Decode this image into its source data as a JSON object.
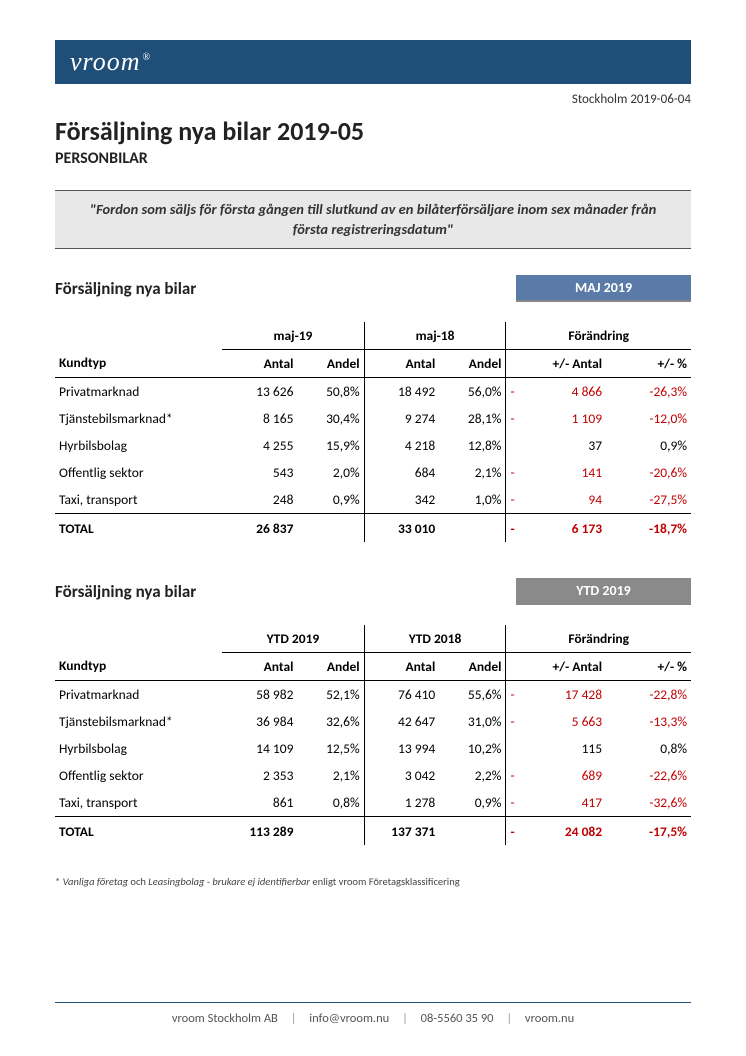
{
  "header": {
    "logo_text": "vroom",
    "logo_mark": "®",
    "date_line": "Stockholm 2019-06-04",
    "title": "Försäljning nya bilar 2019-05",
    "subtitle": "PERSONBILAR"
  },
  "quote": "\"Fordon som säljs för första gången till slutkund av en bilåterförsäljare inom sex månader från första registreringsdatum\"",
  "colors": {
    "header_bar": "#1f4e79",
    "badge_blue": "#5a7ba8",
    "badge_grey": "#8a8a8a",
    "quote_bg": "#e8e8e8",
    "negative": "#c00000"
  },
  "columns": {
    "kundtyp": "Kundtyp",
    "antal": "Antal",
    "andel": "Andel",
    "chg_antal": "+/- Antal",
    "chg_pct": "+/- %",
    "forandring": "Förändring"
  },
  "section_month": {
    "title": "Försäljning nya bilar",
    "badge": "MAJ 2019",
    "period_a": "maj-19",
    "period_b": "maj-18",
    "rows": [
      {
        "label": "Privatmarknad",
        "a_antal": "13 626",
        "a_andel": "50,8%",
        "b_antal": "18 492",
        "b_andel": "56,0%",
        "d_sign": "-",
        "d_antal": "4 866",
        "d_pct": "-26,3%",
        "neg": true
      },
      {
        "label": "Tjänstebilsmarknad*",
        "a_antal": "8 165",
        "a_andel": "30,4%",
        "b_antal": "9 274",
        "b_andel": "28,1%",
        "d_sign": "-",
        "d_antal": "1 109",
        "d_pct": "-12,0%",
        "neg": true
      },
      {
        "label": "Hyrbilsbolag",
        "a_antal": "4 255",
        "a_andel": "15,9%",
        "b_antal": "4 218",
        "b_andel": "12,8%",
        "d_sign": "",
        "d_antal": "37",
        "d_pct": "0,9%",
        "neg": false
      },
      {
        "label": "Offentlig sektor",
        "a_antal": "543",
        "a_andel": "2,0%",
        "b_antal": "684",
        "b_andel": "2,1%",
        "d_sign": "-",
        "d_antal": "141",
        "d_pct": "-20,6%",
        "neg": true
      },
      {
        "label": "Taxi, transport",
        "a_antal": "248",
        "a_andel": "0,9%",
        "b_antal": "342",
        "b_andel": "1,0%",
        "d_sign": "-",
        "d_antal": "94",
        "d_pct": "-27,5%",
        "neg": true
      }
    ],
    "total": {
      "label": "TOTAL",
      "a_antal": "26 837",
      "a_andel": "",
      "b_antal": "33 010",
      "b_andel": "",
      "d_sign": "-",
      "d_antal": "6 173",
      "d_pct": "-18,7%",
      "neg": true
    }
  },
  "section_ytd": {
    "title": "Försäljning nya bilar",
    "badge": "YTD 2019",
    "period_a": "YTD 2019",
    "period_b": "YTD 2018",
    "rows": [
      {
        "label": "Privatmarknad",
        "a_antal": "58 982",
        "a_andel": "52,1%",
        "b_antal": "76 410",
        "b_andel": "55,6%",
        "d_sign": "-",
        "d_antal": "17 428",
        "d_pct": "-22,8%",
        "neg": true
      },
      {
        "label": "Tjänstebilsmarknad*",
        "a_antal": "36 984",
        "a_andel": "32,6%",
        "b_antal": "42 647",
        "b_andel": "31,0%",
        "d_sign": "-",
        "d_antal": "5 663",
        "d_pct": "-13,3%",
        "neg": true
      },
      {
        "label": "Hyrbilsbolag",
        "a_antal": "14 109",
        "a_andel": "12,5%",
        "b_antal": "13 994",
        "b_andel": "10,2%",
        "d_sign": "",
        "d_antal": "115",
        "d_pct": "0,8%",
        "neg": false
      },
      {
        "label": "Offentlig sektor",
        "a_antal": "2 353",
        "a_andel": "2,1%",
        "b_antal": "3 042",
        "b_andel": "2,2%",
        "d_sign": "-",
        "d_antal": "689",
        "d_pct": "-22,6%",
        "neg": true
      },
      {
        "label": "Taxi, transport",
        "a_antal": "861",
        "a_andel": "0,8%",
        "b_antal": "1 278",
        "b_andel": "0,9%",
        "d_sign": "-",
        "d_antal": "417",
        "d_pct": "-32,6%",
        "neg": true
      }
    ],
    "total": {
      "label": "TOTAL",
      "a_antal": "113 289",
      "a_andel": "",
      "b_antal": "137 371",
      "b_andel": "",
      "d_sign": "-",
      "d_antal": "24 082",
      "d_pct": "-17,5%",
      "neg": true
    }
  },
  "footnote": {
    "pre": "* ",
    "em1": "Vanliga företag",
    "mid1": " och ",
    "em2": "Leasingbolag - brukare ej identifierbar",
    "post": " enligt vroom Företagsklassificering"
  },
  "footer": {
    "company": "vroom Stockholm AB",
    "email": "info@vroom.nu",
    "phone": "08-5560 35 90",
    "web": "vroom.nu"
  }
}
